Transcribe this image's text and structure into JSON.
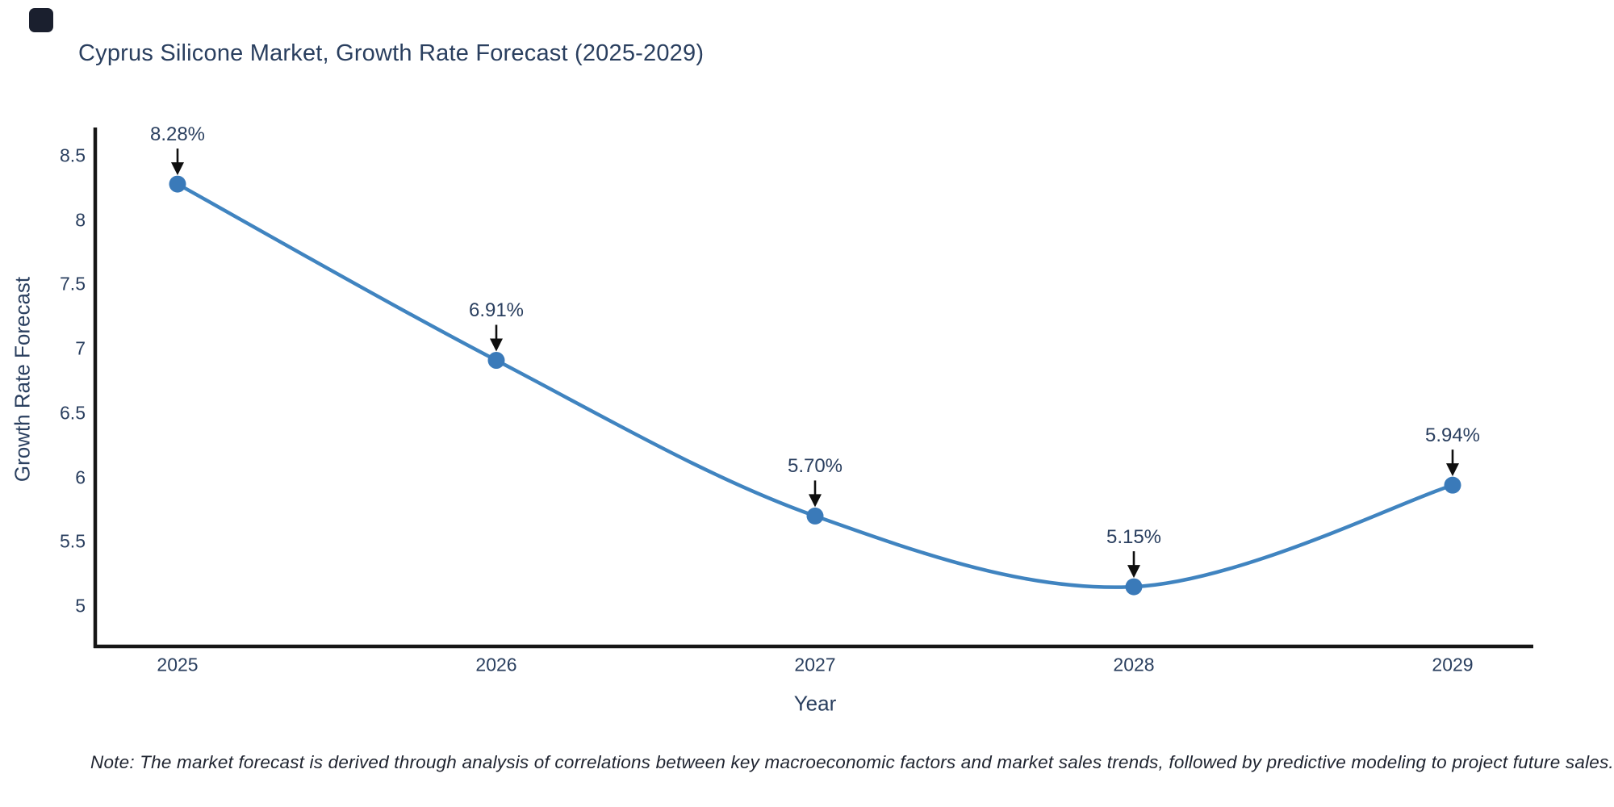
{
  "page": {
    "background": "#ffffff",
    "logo_color": "#1a1f2e"
  },
  "chart_data": {
    "type": "line",
    "title": "Cyprus Silicone Market, Growth Rate Forecast (2025-2029)",
    "xlabel": "Year",
    "ylabel": "Growth Rate Forecast",
    "x": [
      2025,
      2026,
      2027,
      2028,
      2029
    ],
    "values": [
      8.28,
      6.91,
      5.7,
      5.15,
      5.94
    ],
    "point_labels": [
      "8.28%",
      "6.91%",
      "5.70%",
      "5.15%",
      "5.94%"
    ],
    "xtick_labels": [
      "2025",
      "2026",
      "2027",
      "2028",
      "2029"
    ],
    "yticks": [
      5,
      5.5,
      6,
      6.5,
      7,
      7.5,
      8,
      8.5
    ],
    "ytick_labels": [
      "5",
      "5.5",
      "6",
      "6.5",
      "7",
      "7.5",
      "8",
      "8.5"
    ],
    "ylim": [
      4.85,
      8.72
    ],
    "grid": false,
    "legend": false,
    "line_shape": "spline",
    "line_color": "#4084c0",
    "marker_color": "#3a7ab9",
    "axis_color": "#161616",
    "text_color": "#2a3f5f",
    "annotation_arrow_color": "#0f0f0f"
  },
  "note": {
    "text": "Note: The market forecast is derived through analysis of correlations between key macroeconomic factors and market sales trends, followed by predictive modeling to project future sales."
  }
}
